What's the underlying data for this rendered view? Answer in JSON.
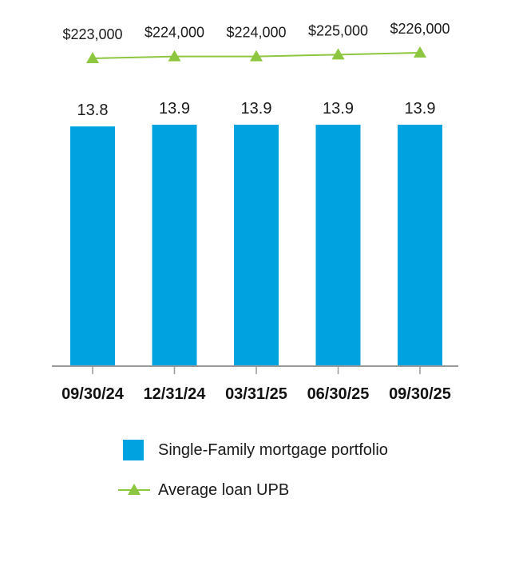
{
  "colors": {
    "bar": "#00a3e0",
    "line": "#8dc63f",
    "axis": "#999999"
  },
  "chart_data": {
    "type": "bar",
    "categories": [
      "09/30/24",
      "12/31/24",
      "03/31/25",
      "06/30/25",
      "09/30/25"
    ],
    "series": [
      {
        "name": "Single-Family mortgage portfolio",
        "kind": "bar",
        "values": [
          13.8,
          13.9,
          13.9,
          13.9,
          13.9
        ],
        "labels": [
          "13.8",
          "13.9",
          "13.9",
          "13.9",
          "13.9"
        ]
      },
      {
        "name": "Average loan UPB",
        "kind": "line",
        "marker": "triangle",
        "values": [
          223000,
          224000,
          224000,
          225000,
          226000
        ],
        "labels": [
          "$223,000",
          "$224,000",
          "$224,000",
          "$225,000",
          "$226,000"
        ]
      }
    ],
    "legend": {
      "position": "bottom",
      "entries": [
        "Single-Family mortgage portfolio",
        "Average loan UPB"
      ]
    }
  }
}
